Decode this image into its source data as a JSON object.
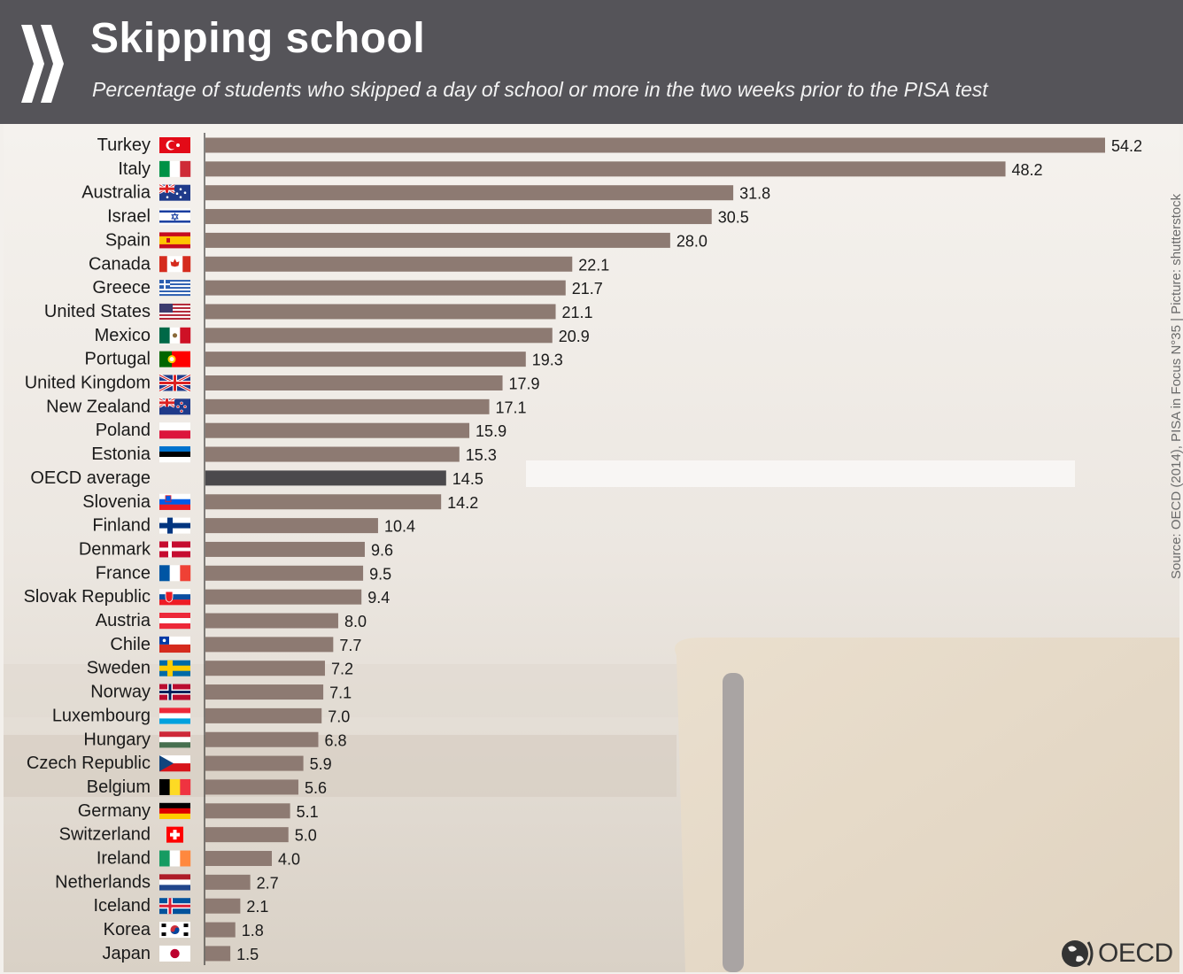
{
  "header": {
    "title": "Skipping school",
    "subtitle": "Percentage of students who skipped a day of school or more in the two weeks prior to the PISA test"
  },
  "source": "Source: OECD (2014), PISA in Focus N°35 | Picture: shutterstock",
  "logo": {
    "text": "OECD"
  },
  "colors": {
    "header_bg": "#555459",
    "bar": "#8d7a72",
    "bar_highlight": "#4b494c",
    "text": "#1a1a1a"
  },
  "chart_data": {
    "type": "bar",
    "orientation": "horizontal",
    "xlim": [
      0,
      55
    ],
    "grid": false,
    "categories": [
      "Turkey",
      "Italy",
      "Australia",
      "Israel",
      "Spain",
      "Canada",
      "Greece",
      "United States",
      "Mexico",
      "Portugal",
      "United Kingdom",
      "New Zealand",
      "Poland",
      "Estonia",
      "OECD average",
      "Slovenia",
      "Finland",
      "Denmark",
      "France",
      "Slovak Republic",
      "Austria",
      "Chile",
      "Sweden",
      "Norway",
      "Luxembourg",
      "Hungary",
      "Czech Republic",
      "Belgium",
      "Germany",
      "Switzerland",
      "Ireland",
      "Netherlands",
      "Iceland",
      "Korea",
      "Japan"
    ],
    "values": [
      54.2,
      48.2,
      31.8,
      30.5,
      28.0,
      22.1,
      21.7,
      21.1,
      20.9,
      19.3,
      17.9,
      17.1,
      15.9,
      15.3,
      14.5,
      14.2,
      10.4,
      9.6,
      9.5,
      9.4,
      8.0,
      7.7,
      7.2,
      7.1,
      7.0,
      6.8,
      5.9,
      5.6,
      5.1,
      5.0,
      4.0,
      2.7,
      2.1,
      1.8,
      1.5
    ],
    "value_labels": [
      "54.2",
      "48.2",
      "31.8",
      "30.5",
      "28.0",
      "22.1",
      "21.7",
      "21.1",
      "20.9",
      "19.3",
      "17.9",
      "17.1",
      "15.9",
      "15.3",
      "14.5",
      "14.2",
      "10.4",
      "9.6",
      "9.5",
      "9.4",
      "8.0",
      "7.7",
      "7.2",
      "7.1",
      "7.0",
      "6.8",
      "5.9",
      "5.6",
      "5.1",
      "5.0",
      "4.0",
      "2.7",
      "2.1",
      "1.8",
      "1.5"
    ],
    "highlight": "OECD average",
    "flags": [
      "turkey-flag-icon",
      "italy-flag-icon",
      "australia-flag-icon",
      "israel-flag-icon",
      "spain-flag-icon",
      "canada-flag-icon",
      "greece-flag-icon",
      "united-states-flag-icon",
      "mexico-flag-icon",
      "portugal-flag-icon",
      "united-kingdom-flag-icon",
      "new-zealand-flag-icon",
      "poland-flag-icon",
      "estonia-flag-icon",
      "",
      "slovenia-flag-icon",
      "finland-flag-icon",
      "denmark-flag-icon",
      "france-flag-icon",
      "slovak-republic-flag-icon",
      "austria-flag-icon",
      "chile-flag-icon",
      "sweden-flag-icon",
      "norway-flag-icon",
      "luxembourg-flag-icon",
      "hungary-flag-icon",
      "czech-republic-flag-icon",
      "belgium-flag-icon",
      "germany-flag-icon",
      "switzerland-flag-icon",
      "ireland-flag-icon",
      "netherlands-flag-icon",
      "iceland-flag-icon",
      "korea-flag-icon",
      "japan-flag-icon"
    ]
  }
}
